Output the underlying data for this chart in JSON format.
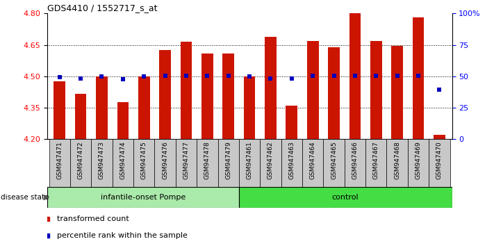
{
  "title": "GDS4410 / 1552717_s_at",
  "samples": [
    "GSM947471",
    "GSM947472",
    "GSM947473",
    "GSM947474",
    "GSM947475",
    "GSM947476",
    "GSM947477",
    "GSM947478",
    "GSM947479",
    "GSM947461",
    "GSM947462",
    "GSM947463",
    "GSM947464",
    "GSM947465",
    "GSM947466",
    "GSM947467",
    "GSM947468",
    "GSM947469",
    "GSM947470"
  ],
  "bar_values": [
    4.475,
    4.415,
    4.5,
    4.375,
    4.5,
    4.625,
    4.665,
    4.61,
    4.61,
    4.5,
    4.69,
    4.36,
    4.67,
    4.64,
    4.8,
    4.67,
    4.645,
    4.78,
    4.22
  ],
  "blue_dots": [
    4.495,
    4.488,
    4.5,
    4.487,
    4.5,
    4.503,
    4.503,
    4.503,
    4.503,
    4.5,
    4.488,
    4.488,
    4.503,
    4.503,
    4.503,
    4.503,
    4.503,
    4.503,
    4.435
  ],
  "bar_color": "#CC1500",
  "dot_color": "#0000BB",
  "ylim": [
    4.2,
    4.8
  ],
  "yticks_left": [
    4.2,
    4.35,
    4.5,
    4.65,
    4.8
  ],
  "yticks_right_vals": [
    0,
    25,
    50,
    75,
    100
  ],
  "yticks_right_pos": [
    4.2,
    4.35,
    4.5,
    4.65,
    4.8
  ],
  "grid_vals": [
    4.35,
    4.5,
    4.65
  ],
  "group1_label": "infantile-onset Pompe",
  "group2_label": "control",
  "group1_count": 9,
  "group2_count": 10,
  "disease_state_label": "disease state",
  "legend_bar_label": "transformed count",
  "legend_dot_label": "percentile rank within the sample",
  "group1_color": "#AAEAAA",
  "group2_color": "#44DD44",
  "tick_bg_color": "#C8C8C8",
  "bar_width": 0.55,
  "figsize": [
    7.11,
    3.54
  ],
  "dpi": 100
}
